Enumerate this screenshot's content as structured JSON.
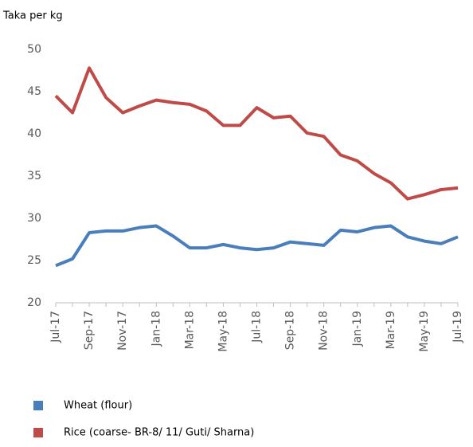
{
  "chart_data": {
    "type": "line",
    "y_axis_label": "Taka per kg",
    "categories": [
      "Jul-17",
      null,
      "Sep-17",
      null,
      "Nov-17",
      null,
      "Jan-18",
      null,
      "Mar-18",
      null,
      "May-18",
      null,
      "Jul-18",
      null,
      "Sep-18",
      null,
      "Nov-18",
      null,
      "Jan-19",
      null,
      "Mar-19",
      null,
      "May-19",
      null,
      "Jul-19"
    ],
    "series": [
      {
        "name": "Wheat (flour)",
        "color": "#4a7ebb",
        "values": [
          24.4,
          25.2,
          28.3,
          28.5,
          28.5,
          28.9,
          29.1,
          27.9,
          26.5,
          26.5,
          26.9,
          26.5,
          26.3,
          26.5,
          27.2,
          27.0,
          26.8,
          28.6,
          28.4,
          28.9,
          29.1,
          27.8,
          27.3,
          27.0,
          27.8
        ]
      },
      {
        "name": "Rice (coarse- BR-8/ 11/ Guti/ Sharna)",
        "color": "#be4b48",
        "values": [
          44.5,
          42.5,
          47.8,
          44.3,
          42.5,
          43.3,
          44.0,
          43.7,
          43.5,
          42.7,
          41.0,
          41.0,
          43.1,
          41.9,
          42.1,
          40.1,
          39.7,
          37.5,
          36.8,
          35.3,
          34.2,
          32.3,
          32.8,
          33.4,
          33.6
        ]
      }
    ],
    "ylim": [
      20,
      50
    ],
    "yticks": [
      20,
      25,
      30,
      35,
      40,
      45,
      50
    ],
    "grid": false,
    "legend": "bottom"
  }
}
